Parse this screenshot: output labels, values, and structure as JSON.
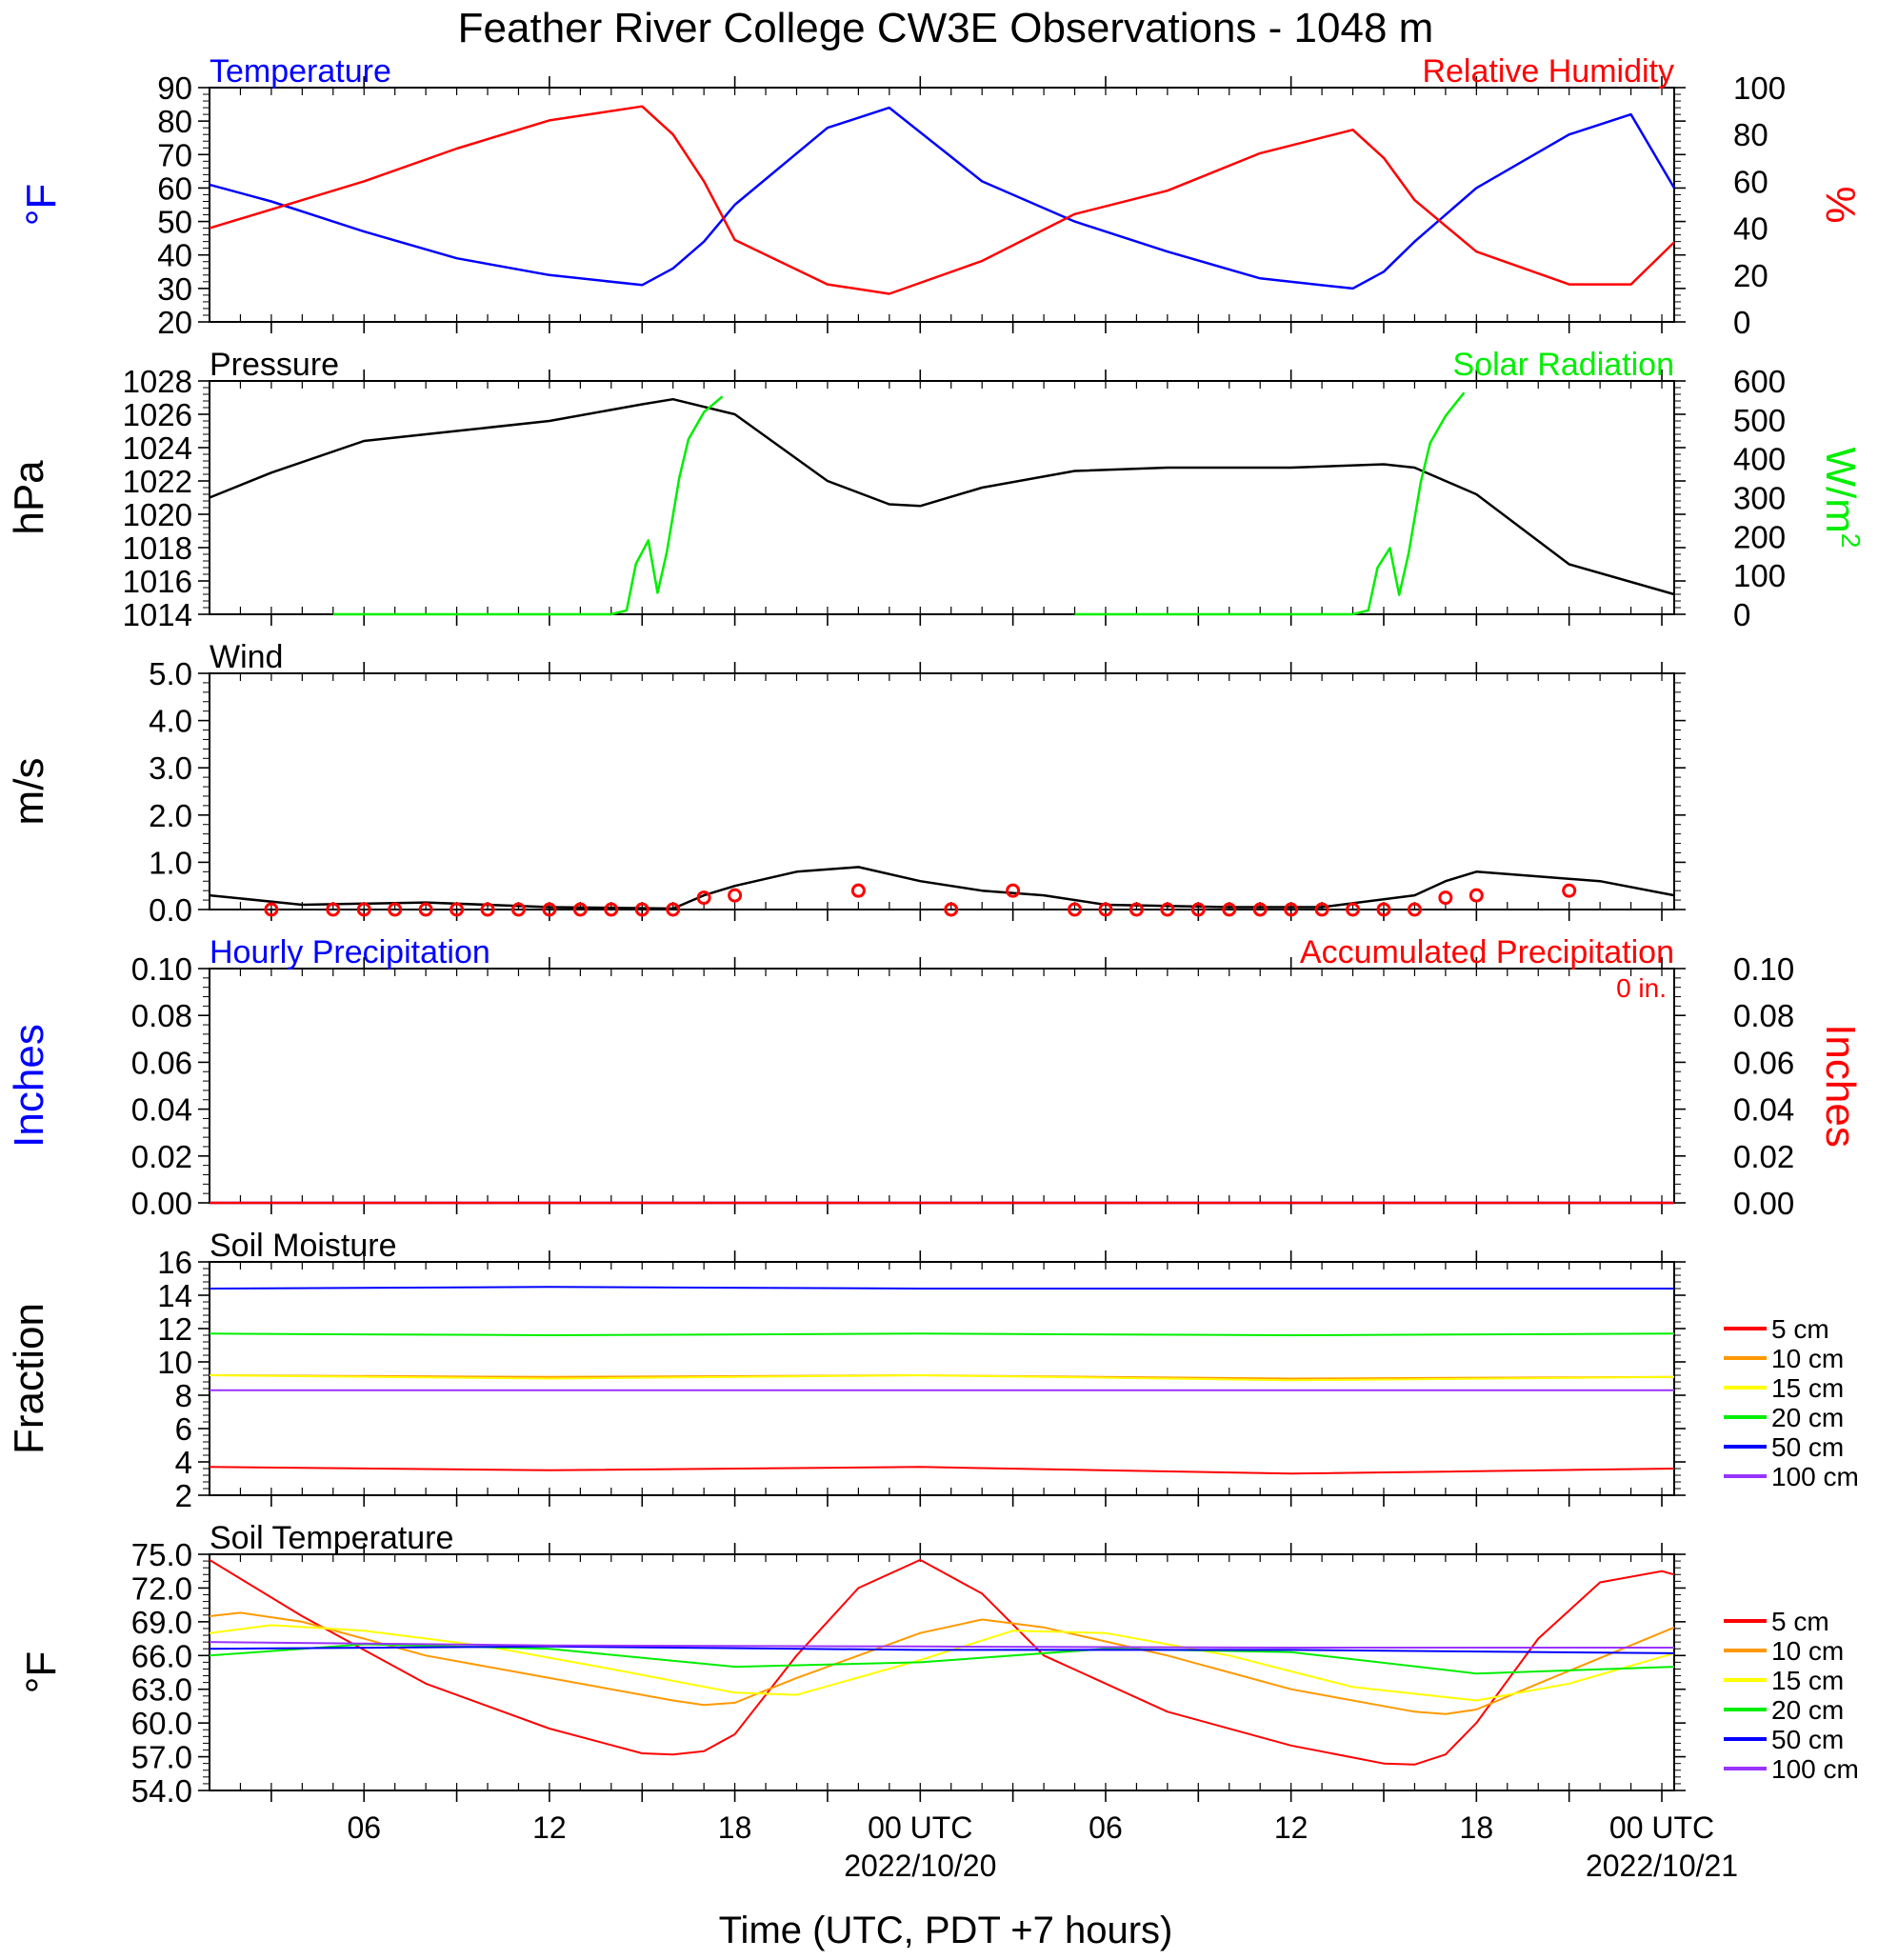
{
  "title": "Feather River College CW3E Observations - 1048 m",
  "xaxis": {
    "label": "Time (UTC, PDT +7 hours)",
    "ticks": [
      "06",
      "12",
      "18",
      "00 UTC",
      "06",
      "12",
      "18",
      "00 UTC"
    ],
    "dates": [
      "2022/10/20",
      "2022/10/21"
    ]
  },
  "chart_data": [
    {
      "type": "line",
      "title_left": "Temperature",
      "title_right": "Relative Humidity",
      "ylabel_left": "°F",
      "ylabel_right": "%",
      "ylim_left": [
        20,
        90
      ],
      "ylim_right": [
        0,
        100
      ],
      "yticks_left": [
        "20",
        "30",
        "40",
        "50",
        "60",
        "70",
        "80",
        "90"
      ],
      "yticks_right": [
        "0",
        "20",
        "40",
        "60",
        "80",
        "100"
      ],
      "x_hours": [
        1,
        3,
        6,
        9,
        12,
        15,
        16,
        17,
        18,
        21,
        23,
        26,
        29,
        32,
        35,
        38,
        39,
        40,
        42,
        45,
        47,
        48.4
      ],
      "series": [
        {
          "name": "Temperature",
          "color": "#0000ff",
          "axis": "left",
          "values": [
            61,
            56,
            47,
            39,
            34,
            31,
            36,
            44,
            55,
            78,
            84,
            62,
            50,
            41,
            33,
            30,
            35,
            44,
            60,
            76,
            82,
            60
          ]
        },
        {
          "name": "Relative Humidity",
          "color": "#ff0000",
          "axis": "right",
          "values": [
            40,
            48,
            60,
            74,
            86,
            92,
            80,
            60,
            35,
            16,
            12,
            26,
            46,
            56,
            72,
            82,
            70,
            52,
            30,
            16,
            16,
            34
          ]
        }
      ]
    },
    {
      "type": "line",
      "title_left": "Pressure",
      "title_right": "Solar Radiation",
      "ylabel_left": "hPa",
      "ylabel_right": "W/m",
      "ylabel_right_sup": "2",
      "ylim_left": [
        1014,
        1028
      ],
      "ylim_right": [
        0,
        600
      ],
      "yticks_left": [
        "1014",
        "1016",
        "1018",
        "1020",
        "1022",
        "1024",
        "1026",
        "1028"
      ],
      "yticks_right": [
        "0",
        "100",
        "200",
        "300",
        "400",
        "500",
        "600"
      ],
      "x_hours": [
        1,
        3,
        6,
        9,
        12,
        15,
        16,
        18,
        21,
        23,
        24,
        26,
        29,
        32,
        36,
        39,
        40,
        42,
        45,
        48.4
      ],
      "series": [
        {
          "name": "Pressure",
          "color": "#000000",
          "axis": "left",
          "values": [
            1021,
            1022.5,
            1024.4,
            1025,
            1025.6,
            1026.6,
            1026.9,
            1026,
            1022,
            1020.6,
            1020.5,
            1021.6,
            1022.6,
            1022.8,
            1022.8,
            1023,
            1022.8,
            1021.2,
            1017,
            1015.2
          ]
        }
      ],
      "solar_segments": [
        {
          "x_hours": [
            5,
            14,
            14.5,
            14.8,
            15.2,
            15.5,
            15.8,
            16.2,
            16.5,
            17,
            17.6
          ],
          "values": [
            0,
            0,
            10,
            130,
            190,
            55,
            160,
            350,
            450,
            520,
            560
          ]
        },
        {
          "x_hours": [
            29,
            38,
            38.5,
            38.8,
            39.2,
            39.5,
            39.8,
            40.2,
            40.5,
            41,
            41.6
          ],
          "values": [
            0,
            0,
            10,
            120,
            170,
            50,
            155,
            340,
            440,
            510,
            570
          ]
        }
      ]
    },
    {
      "type": "line",
      "title_left": "Wind",
      "ylabel_left": "m/s",
      "ylim_left": [
        0,
        5
      ],
      "yticks_left": [
        "0.0",
        "1.0",
        "2.0",
        "3.0",
        "4.0",
        "5.0"
      ],
      "x_hours": [
        1,
        4,
        8,
        12,
        16,
        17,
        18,
        20,
        22,
        24,
        26,
        28,
        30,
        34,
        37,
        40,
        41,
        42,
        44,
        46,
        48.4
      ],
      "series": [
        {
          "name": "Wind",
          "color": "#000000",
          "axis": "left",
          "values": [
            0.3,
            0.1,
            0.15,
            0.05,
            0.02,
            0.3,
            0.5,
            0.8,
            0.9,
            0.6,
            0.4,
            0.3,
            0.1,
            0.05,
            0.05,
            0.3,
            0.6,
            0.8,
            0.7,
            0.6,
            0.3
          ]
        }
      ],
      "barb_circles_x_hours": [
        3,
        5,
        6,
        7,
        8,
        9,
        10,
        11,
        12,
        13,
        14,
        15,
        16,
        17,
        18,
        22,
        25,
        27,
        29,
        30,
        31,
        32,
        33,
        34,
        35,
        36,
        37,
        38,
        39,
        40,
        41,
        42,
        45
      ],
      "barb_circles_values": [
        0,
        0,
        0,
        0,
        0,
        0,
        0,
        0,
        0,
        0,
        0,
        0,
        0,
        0.25,
        0.3,
        0.4,
        0,
        0.4,
        0,
        0,
        0,
        0,
        0,
        0,
        0,
        0,
        0,
        0,
        0,
        0,
        0.25,
        0.3,
        0.4
      ]
    },
    {
      "type": "line",
      "title_left": "Hourly Precipitation",
      "title_right": "Accumulated Precipitation",
      "annotation": "0 in.",
      "ylabel_left": "Inches",
      "ylabel_right": "Inches",
      "ylim_left": [
        0,
        0.1
      ],
      "ylim_right": [
        0,
        0.1
      ],
      "yticks_left": [
        "0.00",
        "0.02",
        "0.04",
        "0.06",
        "0.08",
        "0.10"
      ],
      "yticks_right": [
        "0.00",
        "0.02",
        "0.04",
        "0.06",
        "0.08",
        "0.10"
      ],
      "series": [
        {
          "name": "Hourly Precipitation",
          "color": "#0000ff",
          "axis": "left",
          "x_hours": [
            1,
            48.4
          ],
          "values": [
            0,
            0
          ]
        },
        {
          "name": "Accumulated Precipitation",
          "color": "#ff0000",
          "axis": "right",
          "x_hours": [
            1,
            48.4
          ],
          "values": [
            0,
            0
          ]
        }
      ]
    },
    {
      "type": "line",
      "title_left": "Soil Moisture",
      "ylabel_left": "Fraction",
      "ylim_left": [
        2,
        16
      ],
      "yticks_left": [
        "2",
        "4",
        "6",
        "8",
        "10",
        "12",
        "14",
        "16"
      ],
      "x_hours": [
        1,
        12,
        24,
        36,
        48.4
      ],
      "legend": [
        "5 cm",
        "10 cm",
        "15 cm",
        "20 cm",
        "50 cm",
        "100 cm"
      ],
      "series": [
        {
          "color": "#ff0000",
          "values": [
            3.7,
            3.5,
            3.7,
            3.3,
            3.6
          ]
        },
        {
          "color": "#ff9900",
          "values": [
            9.2,
            9.1,
            9.2,
            9.0,
            9.1
          ]
        },
        {
          "color": "#ffff00",
          "values": [
            9.2,
            9.0,
            9.2,
            8.9,
            9.1
          ]
        },
        {
          "color": "#00ee00",
          "values": [
            11.7,
            11.6,
            11.7,
            11.6,
            11.7
          ]
        },
        {
          "color": "#0000ff",
          "values": [
            14.4,
            14.5,
            14.4,
            14.4,
            14.4
          ]
        },
        {
          "color": "#9933ff",
          "values": [
            8.3,
            8.3,
            8.3,
            8.3,
            8.3
          ]
        }
      ]
    },
    {
      "type": "line",
      "title_left": "Soil Temperature",
      "ylabel_left": "°F",
      "ylim_left": [
        54,
        75
      ],
      "yticks_left": [
        "54.0",
        "57.0",
        "60.0",
        "63.0",
        "66.0",
        "69.0",
        "72.0",
        "75.0"
      ],
      "legend": [
        "5 cm",
        "10 cm",
        "15 cm",
        "20 cm",
        "50 cm",
        "100 cm"
      ],
      "series": [
        {
          "color": "#ff0000",
          "x_hours": [
            1,
            4,
            8,
            12,
            15,
            16,
            17,
            18,
            20,
            22,
            24,
            26,
            28,
            32,
            36,
            39,
            40,
            41,
            42,
            44,
            46,
            48,
            48.4
          ],
          "values": [
            74.5,
            69.5,
            63.5,
            59.5,
            57.3,
            57.2,
            57.5,
            59,
            66,
            72,
            74.5,
            71.5,
            66,
            61,
            58,
            56.4,
            56.3,
            57.2,
            60,
            67.5,
            72.5,
            73.5,
            73.2
          ]
        },
        {
          "color": "#ff9900",
          "x_hours": [
            1,
            2,
            4,
            8,
            12,
            16,
            17,
            18,
            20,
            24,
            26,
            28,
            32,
            36,
            40,
            41,
            42,
            44,
            48.4
          ],
          "values": [
            69.5,
            69.8,
            69,
            66,
            64,
            62,
            61.6,
            61.8,
            64,
            68,
            69.2,
            68.5,
            66,
            63,
            61,
            60.8,
            61.2,
            63.5,
            68.5
          ]
        },
        {
          "color": "#ffff00",
          "x_hours": [
            1,
            3,
            6,
            10,
            14,
            18,
            20,
            24,
            27,
            30,
            34,
            38,
            42,
            45,
            48.4
          ],
          "values": [
            68,
            68.7,
            68.2,
            66.8,
            64.8,
            62.7,
            62.5,
            65.6,
            68.2,
            68,
            66,
            63.2,
            62,
            63.5,
            66.2
          ]
        },
        {
          "color": "#00ee00",
          "x_hours": [
            1,
            6,
            12,
            18,
            24,
            30,
            36,
            42,
            48.4
          ],
          "values": [
            66,
            67,
            66.6,
            65,
            65.4,
            66.6,
            66.3,
            64.4,
            65
          ]
        },
        {
          "color": "#0000ff",
          "x_hours": [
            1,
            12,
            24,
            36,
            48.4
          ],
          "values": [
            66.6,
            66.8,
            66.5,
            66.5,
            66.2
          ]
        },
        {
          "color": "#9933ff",
          "x_hours": [
            1,
            12,
            24,
            36,
            48.4
          ],
          "values": [
            67.2,
            66.9,
            66.8,
            66.7,
            66.7
          ]
        }
      ]
    }
  ]
}
